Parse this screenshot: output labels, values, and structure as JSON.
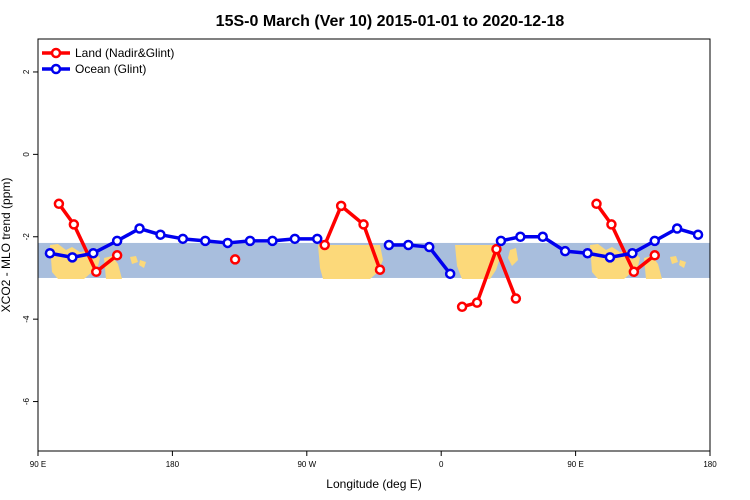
{
  "chart_data": {
    "type": "line",
    "title": "15S-0 March (Ver 10)   2015-01-01 to 2020-12-18",
    "xlabel": "Longitude (deg E)",
    "ylabel": "XCO2 - MLO trend (ppm)",
    "xlim": [
      90,
      540
    ],
    "ylim": [
      -7.2,
      2.8
    ],
    "x_ticks": [
      {
        "value": 90,
        "label": "90 E"
      },
      {
        "value": 180,
        "label": "180"
      },
      {
        "value": 270,
        "label": "90 W"
      },
      {
        "value": 360,
        "label": "0"
      },
      {
        "value": 450,
        "label": "90 E"
      },
      {
        "value": 540,
        "label": "180"
      }
    ],
    "y_ticks": [
      {
        "value": 2,
        "label": "2"
      },
      {
        "value": 0,
        "label": "0"
      },
      {
        "value": -2,
        "label": "-2"
      },
      {
        "value": -4,
        "label": "-4"
      },
      {
        "value": -6,
        "label": "-6"
      }
    ],
    "latitude_band": {
      "ymin": -3.0,
      "ymax": -2.15
    },
    "colors": {
      "ocean_band": "#a8bedd",
      "land_band": "#fcd97a",
      "land_series": "#ff0000",
      "ocean_series": "#0000ee"
    },
    "legend_position": "top-left",
    "series": [
      {
        "name": "Land (Nadir&Glint)",
        "color": "#ff0000",
        "segments": [
          [
            [
              104,
              -1.2
            ],
            [
              114,
              -1.7
            ],
            [
              129,
              -2.85
            ],
            [
              143,
              -2.45
            ]
          ],
          [
            [
              222,
              -2.55
            ]
          ],
          [
            [
              282,
              -2.2
            ],
            [
              293,
              -1.25
            ],
            [
              308,
              -1.7
            ],
            [
              319,
              -2.8
            ]
          ],
          [
            [
              374,
              -3.7
            ],
            [
              384,
              -3.6
            ],
            [
              397,
              -2.3
            ],
            [
              410,
              -3.5
            ]
          ],
          [
            [
              464,
              -1.2
            ],
            [
              474,
              -1.7
            ],
            [
              489,
              -2.85
            ],
            [
              503,
              -2.45
            ]
          ]
        ]
      },
      {
        "name": "Ocean (Glint)",
        "color": "#0000ee",
        "segments": [
          [
            [
              98,
              -2.4
            ],
            [
              113,
              -2.5
            ],
            [
              127,
              -2.4
            ],
            [
              143,
              -2.1
            ],
            [
              158,
              -1.8
            ],
            [
              172,
              -1.95
            ],
            [
              187,
              -2.05
            ],
            [
              202,
              -2.1
            ],
            [
              217,
              -2.15
            ],
            [
              232,
              -2.1
            ],
            [
              247,
              -2.1
            ],
            [
              262,
              -2.05
            ],
            [
              277,
              -2.05
            ]
          ],
          [
            [
              325,
              -2.2
            ],
            [
              338,
              -2.2
            ],
            [
              352,
              -2.25
            ],
            [
              366,
              -2.9
            ]
          ],
          [
            [
              400,
              -2.1
            ],
            [
              413,
              -2.0
            ],
            [
              428,
              -2.0
            ],
            [
              443,
              -2.35
            ],
            [
              458,
              -2.4
            ],
            [
              473,
              -2.5
            ],
            [
              488,
              -2.4
            ],
            [
              503,
              -2.1
            ],
            [
              518,
              -1.8
            ],
            [
              532,
              -1.95
            ]
          ]
        ]
      }
    ]
  }
}
